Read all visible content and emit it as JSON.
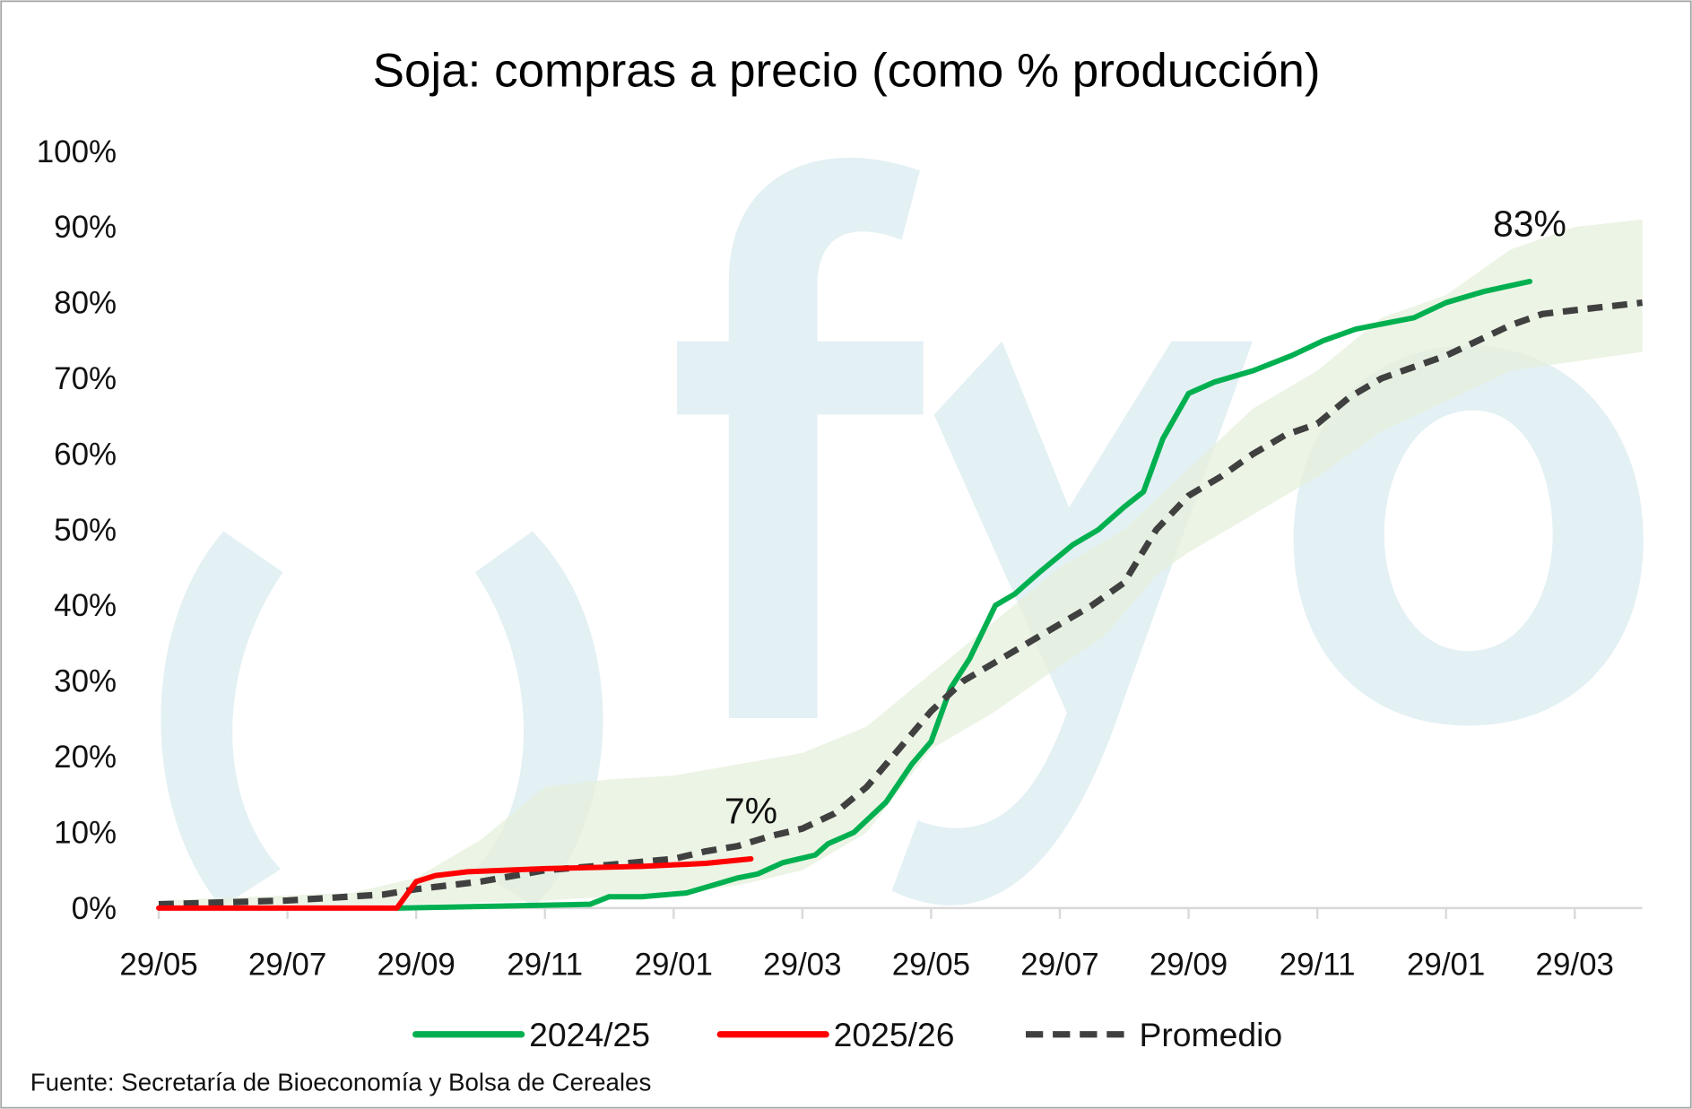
{
  "chart_data": {
    "type": "line",
    "title": "Soja: compras a precio (como % producción)",
    "xlabel": "",
    "ylabel": "",
    "x_units": "months since first 29/05",
    "xlim": [
      0,
      23.05
    ],
    "ylim": [
      0,
      100
    ],
    "y_ticks": [
      0,
      10,
      20,
      30,
      40,
      50,
      60,
      70,
      80,
      90,
      100
    ],
    "y_tick_labels": [
      "0%",
      "10%",
      "20%",
      "30%",
      "40%",
      "50%",
      "60%",
      "70%",
      "80%",
      "90%",
      "100%"
    ],
    "x_ticks": [
      0,
      2,
      4,
      6,
      8,
      10,
      12,
      14,
      16,
      18,
      20,
      22
    ],
    "x_tick_labels": [
      "29/05",
      "29/07",
      "29/09",
      "29/11",
      "29/01",
      "29/03",
      "29/05",
      "29/07",
      "29/09",
      "29/11",
      "29/01",
      "29/03"
    ],
    "grid": false,
    "legend_position": "bottom",
    "series": [
      {
        "name": "2024/25",
        "color": "#00b050",
        "style": "solid",
        "points": [
          [
            3.7,
            0
          ],
          [
            6.7,
            0.5
          ],
          [
            7.0,
            1.5
          ],
          [
            7.5,
            1.5
          ],
          [
            8.2,
            2
          ],
          [
            8.6,
            3
          ],
          [
            9.0,
            4
          ],
          [
            9.3,
            4.5
          ],
          [
            9.7,
            6
          ],
          [
            10.2,
            7
          ],
          [
            10.4,
            8.5
          ],
          [
            10.8,
            10
          ],
          [
            11.3,
            14
          ],
          [
            11.7,
            19
          ],
          [
            12.0,
            22
          ],
          [
            12.3,
            29
          ],
          [
            12.6,
            33
          ],
          [
            13.0,
            40
          ],
          [
            13.3,
            41.5
          ],
          [
            13.7,
            44.5
          ],
          [
            14.2,
            48
          ],
          [
            14.6,
            50
          ],
          [
            15.0,
            53
          ],
          [
            15.3,
            55
          ],
          [
            15.6,
            62
          ],
          [
            16.0,
            68
          ],
          [
            16.4,
            69.5
          ],
          [
            17.0,
            71
          ],
          [
            17.6,
            73
          ],
          [
            18.1,
            75
          ],
          [
            18.6,
            76.5
          ],
          [
            19.5,
            78
          ],
          [
            20.0,
            80
          ],
          [
            20.6,
            81.5
          ],
          [
            21.3,
            82.8
          ]
        ]
      },
      {
        "name": "2025/26",
        "color": "#ff0000",
        "style": "solid",
        "points": [
          [
            0,
            0
          ],
          [
            3.7,
            0
          ],
          [
            4.0,
            3.5
          ],
          [
            4.3,
            4.3
          ],
          [
            4.8,
            4.8
          ],
          [
            6.0,
            5.2
          ],
          [
            7.5,
            5.5
          ],
          [
            8.5,
            5.9
          ],
          [
            9.2,
            6.5
          ]
        ]
      },
      {
        "name": "Promedio",
        "color": "#404040",
        "style": "dashed",
        "points": [
          [
            0,
            0.5
          ],
          [
            2,
            1
          ],
          [
            3.5,
            1.8
          ],
          [
            4,
            2.5
          ],
          [
            5,
            3.5
          ],
          [
            6,
            5
          ],
          [
            7,
            5.7
          ],
          [
            8,
            6.5
          ],
          [
            8.5,
            7.5
          ],
          [
            9,
            8.2
          ],
          [
            9.5,
            9.5
          ],
          [
            10,
            10.5
          ],
          [
            10.5,
            12.5
          ],
          [
            11,
            16
          ],
          [
            11.5,
            21
          ],
          [
            12,
            26
          ],
          [
            12.5,
            30
          ],
          [
            13,
            32.5
          ],
          [
            13.5,
            35
          ],
          [
            14,
            37.5
          ],
          [
            14.5,
            40
          ],
          [
            15,
            43
          ],
          [
            15.5,
            50
          ],
          [
            16,
            54.5
          ],
          [
            16.5,
            57
          ],
          [
            17,
            60
          ],
          [
            17.5,
            62.5
          ],
          [
            18,
            64
          ],
          [
            18.5,
            67.5
          ],
          [
            19,
            70
          ],
          [
            19.5,
            71.5
          ],
          [
            20,
            73
          ],
          [
            20.5,
            75
          ],
          [
            21,
            77
          ],
          [
            21.5,
            78.5
          ],
          [
            22,
            79
          ],
          [
            23.05,
            80
          ]
        ]
      }
    ],
    "range_band": {
      "color": "#e6f0dc",
      "upper": [
        [
          0,
          1
        ],
        [
          3,
          2
        ],
        [
          4,
          4
        ],
        [
          5,
          9
        ],
        [
          6,
          16
        ],
        [
          7,
          17
        ],
        [
          8,
          17.5
        ],
        [
          9,
          19
        ],
        [
          10,
          20.5
        ],
        [
          11,
          24
        ],
        [
          12,
          31
        ],
        [
          13,
          38
        ],
        [
          14,
          45
        ],
        [
          15,
          50
        ],
        [
          16,
          58
        ],
        [
          17,
          66
        ],
        [
          18,
          71
        ],
        [
          19,
          78
        ],
        [
          20,
          81
        ],
        [
          21,
          87
        ],
        [
          22,
          90
        ],
        [
          23.05,
          91
        ]
      ],
      "lower": [
        [
          0,
          0
        ],
        [
          4,
          0.5
        ],
        [
          6,
          1
        ],
        [
          8,
          2
        ],
        [
          9,
          3
        ],
        [
          10,
          5
        ],
        [
          11,
          10
        ],
        [
          12,
          21
        ],
        [
          13,
          26
        ],
        [
          14,
          32
        ],
        [
          14.7,
          36
        ],
        [
          15.5,
          44
        ],
        [
          16,
          47
        ],
        [
          17,
          52
        ],
        [
          18,
          57
        ],
        [
          19,
          63
        ],
        [
          20,
          67
        ],
        [
          21,
          71
        ],
        [
          23.05,
          73.5
        ]
      ]
    },
    "annotations": [
      {
        "text": "83%",
        "x": 21.3,
        "y": 82.8
      },
      {
        "text": "7%",
        "x": 9.2,
        "y": 6.5
      }
    ],
    "source": "Fuente: Secretaría de Bioeconomía y Bolsa de Cereales"
  }
}
